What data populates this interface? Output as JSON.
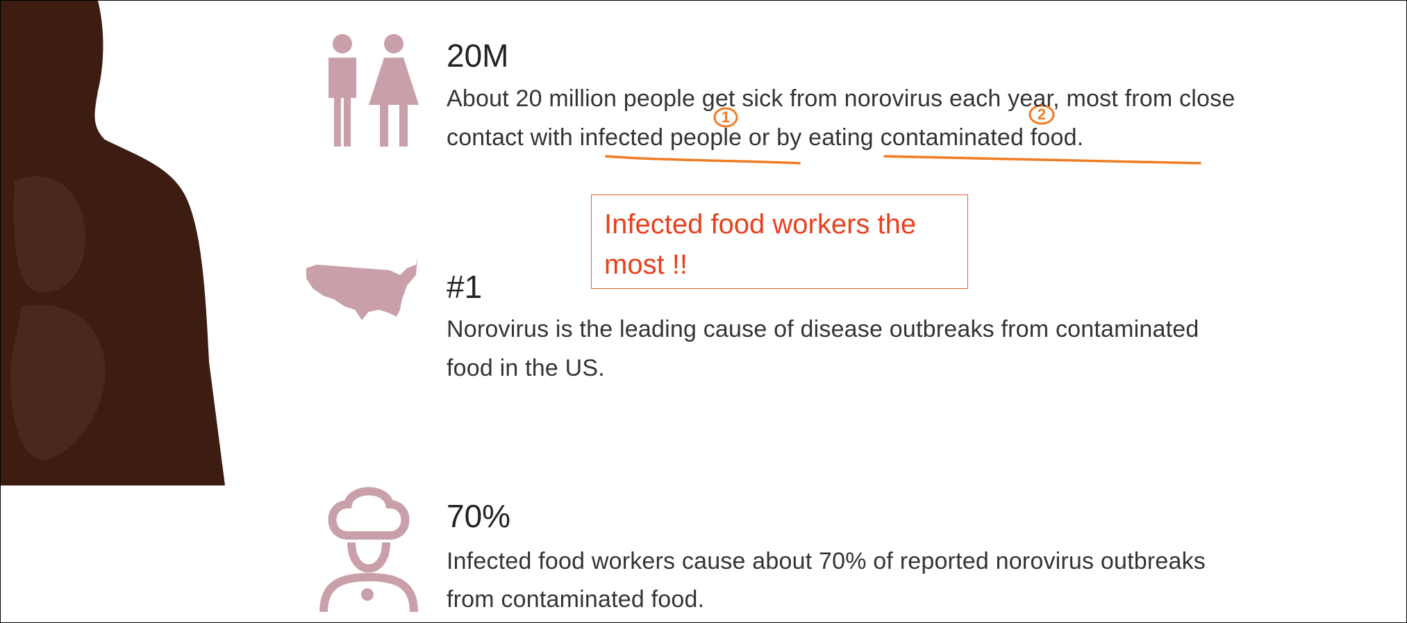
{
  "items": [
    {
      "stat": "20M",
      "lines": [
        "About 20 million people get sick from norovirus each year, most from close",
        "contact with infected people or by eating contaminated food."
      ]
    },
    {
      "stat": "#1",
      "lines": [
        "Norovirus is the leading cause of disease outbreaks from contaminated",
        "food in the US."
      ]
    },
    {
      "stat": "70%",
      "lines": [
        "Infected food workers cause about 70% of reported norovirus outbreaks",
        "from contaminated food."
      ]
    }
  ],
  "annotations": {
    "note": [
      "Infected food workers the",
      "most !!"
    ],
    "marks": [
      "1",
      "2"
    ]
  }
}
